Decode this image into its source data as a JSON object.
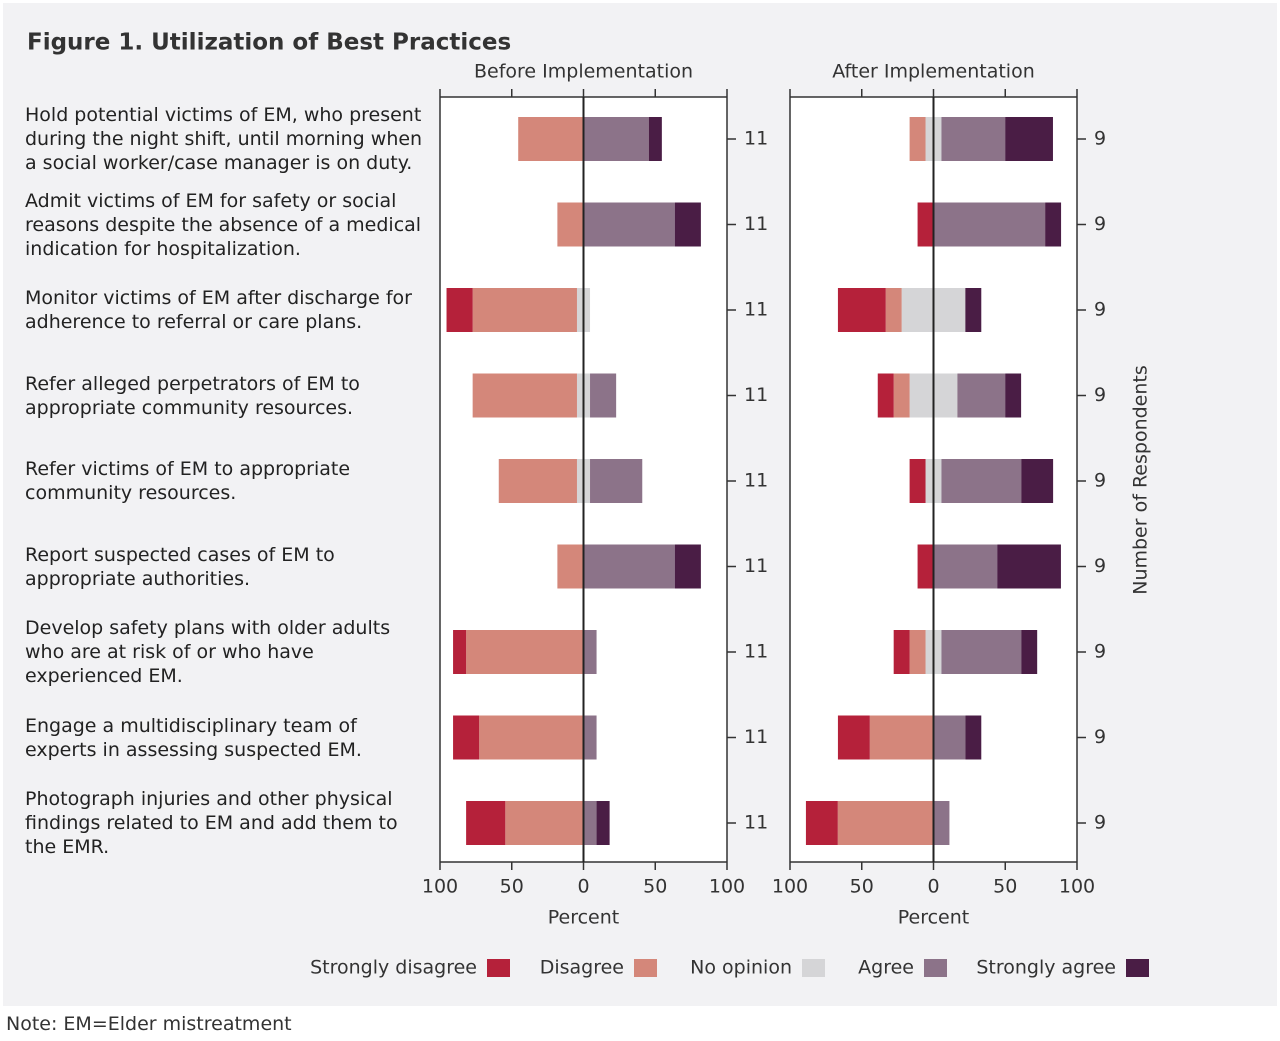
{
  "chart_data": {
    "type": "diverging-stacked-bar",
    "title": "Figure 1.  Utilization of Best Practices",
    "xlabel": "Percent",
    "y2label": "Number of Respondents",
    "note": "Note: EM=Elder mistreatment",
    "categories": [
      "Hold potential victims of EM, who present during the night shift, until morning when a social worker/case manager is on duty.",
      "Admit victims of EM for safety or social reasons despite the absence of a medical indication for hospitalization.",
      "Monitor victims of EM after discharge for adherence to referral or care plans.",
      "Refer alleged perpetrators of EM to appropriate community resources.",
      "Refer victims of EM to appropriate community resources.",
      "Report suspected cases of EM to appropriate authorities.",
      "Develop safety plans with older adults who are at risk of or who have experienced EM.",
      "Engage a multidisciplinary team of experts in assessing suspected EM.",
      "Photograph injuries and other physical findings related to EM and add them to the EMR."
    ],
    "series": [
      {
        "name": "Strongly disagree",
        "color": "#b5213a",
        "side": "negative"
      },
      {
        "name": "Disagree",
        "color": "#d4877a",
        "side": "negative"
      },
      {
        "name": "No opinion",
        "color": "#d5d5d7",
        "side": "center"
      },
      {
        "name": "Agree",
        "color": "#8c7389",
        "side": "positive"
      },
      {
        "name": "Strongly agree",
        "color": "#4a1d45",
        "side": "positive"
      }
    ],
    "xlim": [
      -100,
      100
    ],
    "xticks": [
      {
        "value": -100,
        "label": "100"
      },
      {
        "value": -50,
        "label": "50"
      },
      0,
      50,
      100
    ],
    "panels": [
      {
        "title": "Before Implementation",
        "respondents": [
          11,
          11,
          11,
          11,
          11,
          11,
          11,
          11,
          11
        ],
        "values": [
          [
            0,
            0,
            18.2,
            0,
            0,
            0,
            9.1,
            18.2,
            27.3
          ],
          [
            45.5,
            18.2,
            72.7,
            72.7,
            54.5,
            18.2,
            81.8,
            72.7,
            54.5
          ],
          [
            0,
            0,
            9.1,
            9.1,
            9.1,
            0,
            0,
            0,
            0
          ],
          [
            45.5,
            63.6,
            0,
            18.2,
            36.4,
            63.6,
            9.1,
            9.1,
            9.1
          ],
          [
            9.1,
            18.2,
            0,
            0,
            0,
            18.2,
            0,
            0,
            9.1
          ]
        ]
      },
      {
        "title": "After Implementation",
        "respondents": [
          9,
          9,
          9,
          9,
          9,
          9,
          9,
          9,
          9
        ],
        "values": [
          [
            0,
            11.1,
            33.3,
            11.1,
            11.1,
            11.1,
            11.1,
            22.2,
            22.2
          ],
          [
            11.1,
            0,
            11.1,
            11.1,
            0,
            0,
            11.1,
            44.4,
            66.7
          ],
          [
            11.1,
            0,
            44.4,
            33.3,
            11.1,
            0,
            11.1,
            0,
            0
          ],
          [
            44.4,
            77.8,
            0,
            33.3,
            55.6,
            44.4,
            55.6,
            22.2,
            11.1
          ],
          [
            33.3,
            11.1,
            11.1,
            11.1,
            22.2,
            44.4,
            11.1,
            11.1,
            0
          ]
        ]
      }
    ]
  }
}
